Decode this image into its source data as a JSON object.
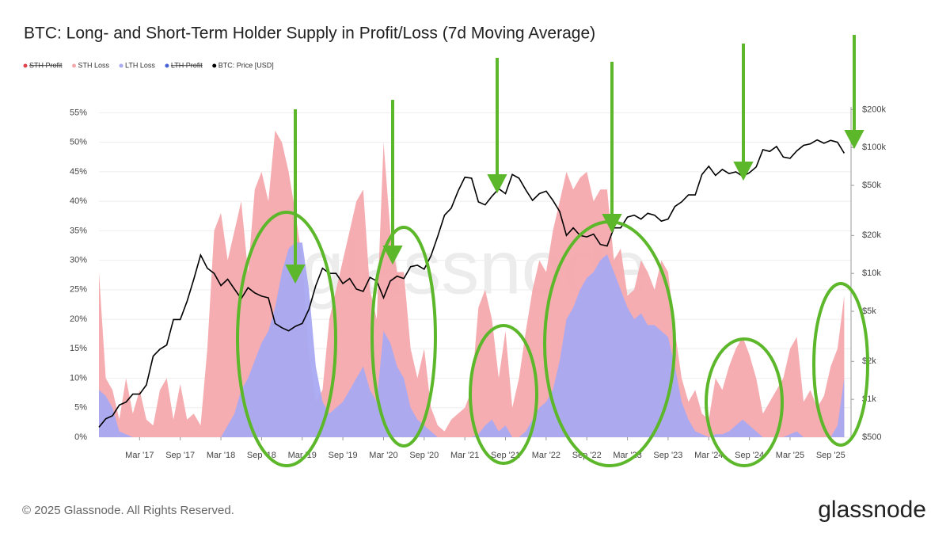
{
  "chart_data": {
    "type": "area-line",
    "title": "BTC: Long- and Short-Term Holder Supply in Profit/Loss (7d Moving Average)",
    "watermark": "glassnode",
    "x": [
      "2016-09",
      "2016-10",
      "2016-11",
      "2016-12",
      "2017-01",
      "2017-02",
      "2017-03",
      "2017-04",
      "2017-05",
      "2017-06",
      "2017-07",
      "2017-08",
      "2017-09",
      "2017-10",
      "2017-11",
      "2017-12",
      "2018-01",
      "2018-02",
      "2018-03",
      "2018-04",
      "2018-05",
      "2018-06",
      "2018-07",
      "2018-08",
      "2018-09",
      "2018-10",
      "2018-11",
      "2018-12",
      "2019-01",
      "2019-02",
      "2019-03",
      "2019-04",
      "2019-05",
      "2019-06",
      "2019-07",
      "2019-08",
      "2019-09",
      "2019-10",
      "2019-11",
      "2019-12",
      "2020-01",
      "2020-02",
      "2020-03",
      "2020-04",
      "2020-05",
      "2020-06",
      "2020-07",
      "2020-08",
      "2020-09",
      "2020-10",
      "2020-11",
      "2020-12",
      "2021-01",
      "2021-02",
      "2021-03",
      "2021-04",
      "2021-05",
      "2021-06",
      "2021-07",
      "2021-08",
      "2021-09",
      "2021-10",
      "2021-11",
      "2021-12",
      "2022-01",
      "2022-02",
      "2022-03",
      "2022-04",
      "2022-05",
      "2022-06",
      "2022-07",
      "2022-08",
      "2022-09",
      "2022-10",
      "2022-11",
      "2022-12",
      "2023-01",
      "2023-02",
      "2023-03",
      "2023-04",
      "2023-05",
      "2023-06",
      "2023-07",
      "2023-08",
      "2023-09",
      "2023-10",
      "2023-11",
      "2023-12",
      "2024-01",
      "2024-02",
      "2024-03",
      "2024-04",
      "2024-05",
      "2024-06",
      "2024-07",
      "2024-08",
      "2024-09",
      "2024-10",
      "2024-11",
      "2024-12",
      "2025-01",
      "2025-02",
      "2025-03",
      "2025-04",
      "2025-05",
      "2025-06",
      "2025-07",
      "2025-08",
      "2025-09",
      "2025-10",
      "2025-11"
    ],
    "series": [
      {
        "name": "STH Profit",
        "color": "#e0444c",
        "hidden": true
      },
      {
        "name": "STH Loss",
        "color": "#f4a9ad",
        "kind": "area",
        "values": [
          28,
          10,
          8,
          3,
          10,
          4,
          8,
          3,
          2,
          8,
          10,
          3,
          9,
          3,
          4,
          2,
          15,
          35,
          38,
          30,
          35,
          40,
          28,
          42,
          45,
          40,
          52,
          50,
          45,
          38,
          30,
          14,
          6,
          8,
          20,
          25,
          30,
          35,
          40,
          42,
          25,
          20,
          50,
          35,
          28,
          28,
          15,
          10,
          15,
          5,
          2,
          1,
          3,
          4,
          5,
          8,
          22,
          25,
          20,
          10,
          18,
          5,
          10,
          18,
          25,
          30,
          28,
          35,
          40,
          45,
          42,
          44,
          45,
          40,
          42,
          42,
          30,
          32,
          24,
          25,
          30,
          28,
          25,
          30,
          28,
          18,
          10,
          6,
          8,
          4,
          3,
          10,
          8,
          12,
          15,
          17,
          14,
          10,
          4,
          6,
          8,
          10,
          15,
          17,
          6,
          8,
          5,
          7,
          12,
          15,
          24
        ]
      },
      {
        "name": "LTH Loss",
        "color": "#a9a9f2",
        "kind": "area",
        "values": [
          8,
          7,
          5,
          1,
          0.5,
          0,
          0,
          0,
          0,
          0,
          0,
          0,
          0,
          0,
          0,
          0,
          0,
          0,
          0,
          2,
          4,
          8,
          10,
          13,
          16,
          18,
          22,
          28,
          32,
          33,
          33,
          25,
          12,
          6,
          4,
          5,
          6,
          8,
          10,
          12,
          8,
          6,
          18,
          16,
          12,
          10,
          5,
          3,
          2,
          1,
          0,
          0,
          0,
          0,
          0,
          0,
          0.5,
          2,
          3,
          1,
          2,
          0,
          0,
          1,
          3,
          5,
          6,
          8,
          13,
          20,
          22,
          25,
          27,
          28,
          30,
          31,
          28,
          25,
          22,
          20,
          21,
          19,
          19,
          18,
          17,
          12,
          6,
          3,
          1,
          0.5,
          0,
          0.5,
          0.5,
          1,
          2,
          3,
          2,
          1,
          0,
          0,
          0,
          0,
          0.5,
          1,
          0,
          0,
          0,
          0,
          0,
          2,
          10
        ]
      },
      {
        "name": "LTH Profit",
        "color": "#4a63d8",
        "hidden": true
      },
      {
        "name": "BTC: Price [USD]",
        "color": "#000000",
        "kind": "line",
        "axis": "y2",
        "values": [
          600,
          700,
          740,
          900,
          950,
          1100,
          1100,
          1300,
          2200,
          2500,
          2700,
          4300,
          4300,
          6000,
          9000,
          14000,
          11000,
          10000,
          8000,
          9000,
          7500,
          6300,
          7700,
          7000,
          6600,
          6400,
          4000,
          3700,
          3500,
          3800,
          4000,
          5200,
          8000,
          11000,
          10000,
          10000,
          8300,
          9100,
          7500,
          7200,
          9300,
          8700,
          6400,
          8700,
          9500,
          9100,
          11300,
          11600,
          10800,
          13800,
          19700,
          29000,
          33000,
          45000,
          58000,
          57000,
          37000,
          35000,
          41000,
          47000,
          43000,
          61000,
          57000,
          46000,
          38000,
          43000,
          45000,
          38000,
          31000,
          20000,
          23000,
          20000,
          19500,
          20500,
          17000,
          16500,
          23000,
          23000,
          28000,
          29000,
          27000,
          30000,
          29000,
          26000,
          27000,
          34000,
          37000,
          42000,
          42000,
          61000,
          71000,
          60000,
          67000,
          62000,
          64000,
          59000,
          63000,
          70000,
          96000,
          93000,
          102000,
          84000,
          82000,
          94000,
          104000,
          107000,
          115000,
          108000,
          114000,
          110000,
          90000
        ]
      }
    ],
    "xlim": [
      "2016-09",
      "2025-12"
    ],
    "xticks": [
      {
        "value": "2017-03",
        "label": "Mar '17"
      },
      {
        "value": "2017-09",
        "label": "Sep '17"
      },
      {
        "value": "2018-03",
        "label": "Mar '18"
      },
      {
        "value": "2018-09",
        "label": "Sep '18"
      },
      {
        "value": "2019-03",
        "label": "Mar '19"
      },
      {
        "value": "2019-09",
        "label": "Sep '19"
      },
      {
        "value": "2020-03",
        "label": "Mar '20"
      },
      {
        "value": "2020-09",
        "label": "Sep '20"
      },
      {
        "value": "2021-03",
        "label": "Mar '21"
      },
      {
        "value": "2021-09",
        "label": "Sep '21"
      },
      {
        "value": "2022-03",
        "label": "Mar '22"
      },
      {
        "value": "2022-09",
        "label": "Sep '22"
      },
      {
        "value": "2023-03",
        "label": "Mar '23"
      },
      {
        "value": "2023-09",
        "label": "Sep '23"
      },
      {
        "value": "2024-03",
        "label": "Mar '24"
      },
      {
        "value": "2024-09",
        "label": "Sep '24"
      },
      {
        "value": "2025-03",
        "label": "Mar '25"
      },
      {
        "value": "2025-09",
        "label": "Sep '25"
      }
    ],
    "ylim": [
      0,
      56
    ],
    "yticks": [
      {
        "value": 0,
        "label": "0%"
      },
      {
        "value": 5,
        "label": "5%"
      },
      {
        "value": 10,
        "label": "10%"
      },
      {
        "value": 15,
        "label": "15%"
      },
      {
        "value": 20,
        "label": "20%"
      },
      {
        "value": 25,
        "label": "25%"
      },
      {
        "value": 30,
        "label": "30%"
      },
      {
        "value": 35,
        "label": "35%"
      },
      {
        "value": 40,
        "label": "40%"
      },
      {
        "value": 45,
        "label": "45%"
      },
      {
        "value": 50,
        "label": "50%"
      },
      {
        "value": 55,
        "label": "55%"
      }
    ],
    "y2lim": [
      500,
      210000
    ],
    "y2log": true,
    "y2ticks": [
      {
        "value": 500,
        "label": "$500"
      },
      {
        "value": 1000,
        "label": "$1k"
      },
      {
        "value": 2000,
        "label": "$2k"
      },
      {
        "value": 5000,
        "label": "$5k"
      },
      {
        "value": 10000,
        "label": "$10k"
      },
      {
        "value": 20000,
        "label": "$20k"
      },
      {
        "value": 50000,
        "label": "$50k"
      },
      {
        "value": 100000,
        "label": "$100k"
      },
      {
        "value": 200000,
        "label": "$200k"
      }
    ],
    "grid": true
  },
  "footer": "© 2025 Glassnode. All Rights Reserved.",
  "logo": "glassnode"
}
